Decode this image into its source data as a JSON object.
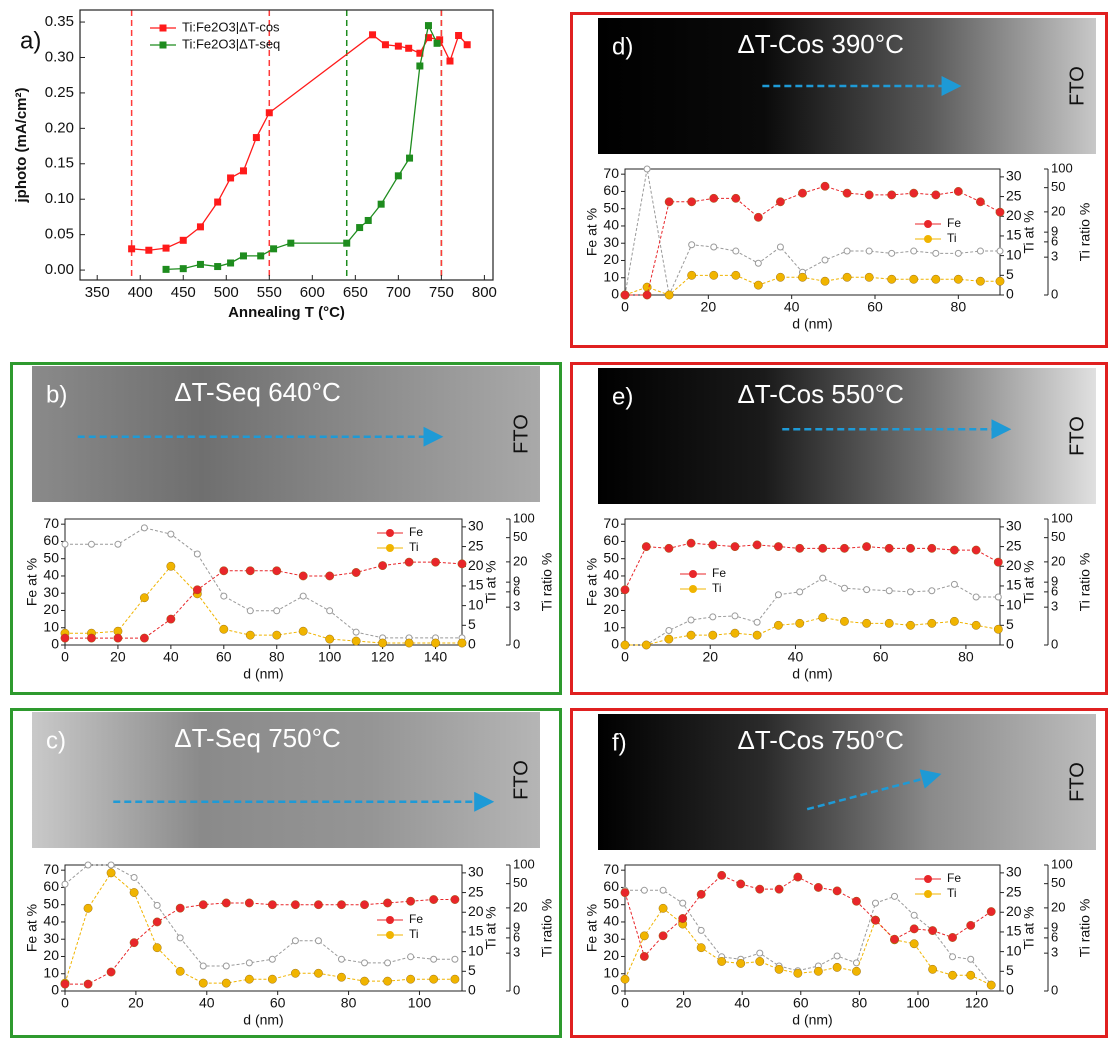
{
  "chart_data": [
    {
      "type": "line",
      "panel": "a)",
      "xlabel": "Annealing T (°C)",
      "ylabel": "jphoto (mA/cm²)",
      "xlim": [
        330,
        810
      ],
      "xticks": [
        350,
        400,
        450,
        500,
        550,
        600,
        650,
        700,
        750,
        800
      ],
      "ylim": [
        -0.014,
        0.367
      ],
      "yticks": [
        {
          "value": 0,
          "label": "0.00"
        },
        0.05,
        {
          "value": 0.1,
          "label": "0.10"
        },
        0.15,
        {
          "value": 0.2,
          "label": "0.20"
        },
        0.25,
        {
          "value": 0.3,
          "label": "0.30"
        },
        0.35
      ],
      "legend": "upper left",
      "vlines": [
        {
          "value": 390,
          "color": "#ff3b3b"
        },
        {
          "value": 550,
          "color": "#ff3b3b"
        },
        {
          "value": 640,
          "color": "#1e8c1e"
        },
        {
          "value": 750,
          "color": "#1e8c1e"
        },
        {
          "value": 750,
          "color": "#ff3b3b"
        }
      ],
      "series": [
        {
          "name": "Ti:Fe2O3|ΔT-cos",
          "color": "#ff1a1a",
          "x": [
            390,
            410,
            430,
            450,
            470,
            490,
            505,
            520,
            535,
            550,
            670,
            685,
            700,
            712,
            725,
            735,
            748,
            760,
            770,
            780
          ],
          "values": [
            0.03,
            0.028,
            0.031,
            0.042,
            0.061,
            0.096,
            0.13,
            0.14,
            0.187,
            0.222,
            0.332,
            0.318,
            0.316,
            0.313,
            0.306,
            0.328,
            0.325,
            0.295,
            0.331,
            0.318
          ]
        },
        {
          "name": "Ti:Fe2O3|ΔT-seq",
          "color": "#1e8c1e",
          "x": [
            430,
            450,
            470,
            490,
            505,
            520,
            540,
            555,
            575,
            640,
            655,
            665,
            680,
            700,
            713,
            725,
            735,
            745
          ],
          "values": [
            0.001,
            0.002,
            0.008,
            0.005,
            0.01,
            0.02,
            0.02,
            0.03,
            0.038,
            0.038,
            0.06,
            0.07,
            0.093,
            0.133,
            0.158,
            0.288,
            0.345,
            0.32
          ]
        }
      ]
    },
    {
      "type": "profile",
      "panel": "b)",
      "annotation": "ΔT-Seq 640°C",
      "side_label": "FTO",
      "frame_color": "#2e9a2e",
      "legend": "upper right",
      "xlabel": "d (nm)",
      "ylabel": "Fe at %",
      "y2label": "Ti at %",
      "y3label": "Ti ratio %",
      "xlim": [
        0,
        150
      ],
      "xticks": [
        0,
        20,
        40,
        60,
        80,
        100,
        120,
        140
      ],
      "ylim": [
        0,
        73
      ],
      "yticks": [
        0,
        10,
        20,
        30,
        40,
        50,
        60,
        70
      ],
      "y2lim": [
        0,
        32
      ],
      "y2ticks": [
        0,
        5,
        10,
        15,
        20,
        25,
        30
      ],
      "y3lim": [
        0,
        100
      ],
      "y3ticks": [
        0,
        3,
        6,
        9,
        20,
        50,
        100
      ],
      "y3scale": "log",
      "x": [
        0,
        10,
        20,
        30,
        40,
        50,
        60,
        70,
        80,
        90,
        100,
        110,
        120,
        130,
        140,
        150
      ],
      "series": [
        {
          "name": "Fe",
          "color": "#e8262a",
          "axis": "y",
          "values": [
            4,
            4,
            4,
            4,
            15,
            32,
            43,
            43,
            43,
            40,
            40,
            42,
            46,
            48,
            48,
            47
          ]
        },
        {
          "name": "Ti",
          "color": "#f0b400",
          "axis": "y2",
          "values": [
            3,
            3,
            3.5,
            12,
            20,
            13,
            4,
            2.5,
            2.5,
            3.5,
            1.5,
            1,
            0.5,
            0.5,
            0.5,
            0.5
          ]
        },
        {
          "color": "#9a9a9a",
          "axis": "y3",
          "values": [
            39,
            39,
            39,
            72,
            57,
            27,
            5,
            2.5,
            2.5,
            5,
            2.5,
            0.6,
            0.3,
            0.3,
            0.3,
            0.3
          ]
        }
      ]
    },
    {
      "type": "profile",
      "panel": "c)",
      "annotation": "ΔT-Seq 750°C",
      "side_label": "FTO",
      "frame_color": "#2e9a2e",
      "legend": "center right",
      "xlabel": "d (nm)",
      "ylabel": "Fe at %",
      "y2label": "Ti at %",
      "y3label": "Ti ratio %",
      "xlim": [
        0,
        112
      ],
      "xticks": [
        0,
        20,
        40,
        60,
        80,
        100
      ],
      "ylim": [
        0,
        73
      ],
      "yticks": [
        0,
        10,
        20,
        30,
        40,
        50,
        60,
        70
      ],
      "y2lim": [
        0,
        32
      ],
      "y2ticks": [
        0,
        5,
        10,
        15,
        20,
        25,
        30
      ],
      "y3lim": [
        0,
        100
      ],
      "y3ticks": [
        0,
        3,
        6,
        9,
        20,
        50,
        100
      ],
      "y3scale": "log",
      "x": [
        0,
        6.5,
        13,
        19.5,
        26,
        32.5,
        39,
        45.5,
        52,
        58.5,
        65,
        71.5,
        78,
        84.5,
        91,
        97.5,
        104,
        110
      ],
      "series": [
        {
          "name": "Fe",
          "color": "#e8262a",
          "axis": "y",
          "values": [
            4,
            4,
            11,
            28,
            40,
            48,
            50,
            51,
            51,
            50,
            50,
            50,
            50,
            50,
            51,
            52,
            53,
            53
          ]
        },
        {
          "name": "Ti",
          "color": "#f0b400",
          "axis": "y2",
          "values": [
            2,
            21,
            30,
            25,
            11,
            5,
            2,
            2,
            3,
            3,
            4.5,
            4.5,
            3.5,
            2.5,
            2.5,
            3,
            3,
            3
          ]
        },
        {
          "color": "#9a9a9a",
          "axis": "y3",
          "values": [
            49,
            100,
            100,
            63,
            22,
            6,
            1.5,
            1.5,
            1.8,
            2.2,
            5.3,
            5.3,
            2.2,
            1.8,
            1.8,
            2.5,
            2.2,
            2.2
          ]
        }
      ]
    },
    {
      "type": "profile",
      "panel": "d)",
      "annotation": "ΔT-Cos 390°C",
      "side_label": "FTO",
      "frame_color": "#e02020",
      "legend": "center right",
      "xlabel": "d (nm)",
      "ylabel": "Fe at %",
      "y2label": "Ti at %",
      "y3label": "Ti ratio %",
      "xlim": [
        0,
        90
      ],
      "xticks": [
        0,
        20,
        40,
        60,
        80
      ],
      "ylim": [
        0,
        73
      ],
      "yticks": [
        0,
        10,
        20,
        30,
        40,
        50,
        60,
        70
      ],
      "y2lim": [
        0,
        32
      ],
      "y2ticks": [
        0,
        5,
        10,
        15,
        20,
        25,
        30
      ],
      "y3lim": [
        0,
        100
      ],
      "y3ticks": [
        0,
        3,
        6,
        9,
        20,
        50,
        100
      ],
      "y3scale": "log",
      "x": [
        0,
        5.3,
        10.6,
        16,
        21.3,
        26.6,
        32,
        37.3,
        42.6,
        48,
        53.3,
        58.6,
        64,
        69.3,
        74.6,
        80,
        85.3,
        90
      ],
      "series": [
        {
          "name": "Fe",
          "color": "#e8262a",
          "axis": "y",
          "values": [
            0,
            0,
            54,
            54,
            56,
            56,
            45,
            54,
            59,
            63,
            59,
            58,
            58,
            59,
            58,
            60,
            54,
            48
          ]
        },
        {
          "name": "Ti",
          "color": "#f0b400",
          "axis": "y2",
          "values": [
            0,
            2,
            0,
            5,
            5,
            5,
            2.5,
            4.5,
            4.5,
            3.5,
            4.5,
            4.5,
            4,
            4,
            4,
            4,
            3.5,
            3.5
          ]
        },
        {
          "color": "#9a9a9a",
          "axis": "y3",
          "values": [
            0,
            100,
            0,
            5.3,
            4.8,
            4,
            2.2,
            4.8,
            1.3,
            2.6,
            4,
            4,
            3.6,
            4,
            3.6,
            3.6,
            4,
            4
          ]
        }
      ]
    },
    {
      "type": "profile",
      "panel": "e)",
      "annotation": "ΔT-Cos 550°C",
      "side_label": "FTO",
      "frame_color": "#e02020",
      "legend": "center left",
      "xlabel": "d (nm)",
      "ylabel": "Fe at %",
      "y2label": "Ti at %",
      "y3label": "Ti ratio %",
      "xlim": [
        0,
        88
      ],
      "xticks": [
        0,
        20,
        40,
        60,
        80
      ],
      "ylim": [
        0,
        73
      ],
      "yticks": [
        0,
        10,
        20,
        30,
        40,
        50,
        60,
        70
      ],
      "y2lim": [
        0,
        32
      ],
      "y2ticks": [
        0,
        5,
        10,
        15,
        20,
        25,
        30
      ],
      "y3lim": [
        0,
        100
      ],
      "y3ticks": [
        0,
        3,
        6,
        9,
        20,
        50,
        100
      ],
      "y3scale": "log",
      "x": [
        0,
        5,
        10.3,
        15.5,
        20.6,
        25.8,
        31,
        36,
        41,
        46.4,
        51.5,
        56.7,
        62,
        67,
        72,
        77.3,
        82.4,
        87.6
      ],
      "series": [
        {
          "name": "Fe",
          "color": "#e8262a",
          "axis": "y",
          "values": [
            32,
            57,
            56,
            59,
            58,
            57,
            58,
            57,
            56,
            56,
            56,
            57,
            56,
            56,
            56,
            55,
            55,
            48
          ]
        },
        {
          "name": "Ti",
          "color": "#f0b400",
          "axis": "y2",
          "values": [
            0,
            0,
            1.5,
            2.5,
            2.5,
            3,
            2.5,
            5,
            5.5,
            7,
            6,
            5.5,
            5.5,
            5,
            5.5,
            6,
            5,
            4
          ]
        },
        {
          "color": "#9a9a9a",
          "axis": "y3",
          "values": [
            0,
            0,
            0.7,
            1.5,
            1.8,
            1.9,
            1.3,
            5.3,
            6,
            10.6,
            7,
            6.6,
            6.3,
            6,
            6.3,
            8.2,
            4.8,
            4.8
          ]
        }
      ]
    },
    {
      "type": "profile",
      "panel": "f)",
      "annotation": "ΔT-Cos 750°C",
      "side_label": "FTO",
      "frame_color": "#e02020",
      "legend": "upper right",
      "xlabel": "d (nm)",
      "ylabel": "Fe at %",
      "y2label": "Ti at %",
      "y3label": "Ti ratio %",
      "xlim": [
        0,
        128
      ],
      "xticks": [
        0,
        20,
        40,
        60,
        80,
        100,
        120
      ],
      "ylim": [
        0,
        73
      ],
      "yticks": [
        0,
        10,
        20,
        30,
        40,
        50,
        60,
        70
      ],
      "y2lim": [
        0,
        32
      ],
      "y2ticks": [
        0,
        5,
        10,
        15,
        20,
        25,
        30
      ],
      "y3lim": [
        0,
        100
      ],
      "y3ticks": [
        0,
        3,
        6,
        9,
        20,
        50,
        100
      ],
      "y3scale": "log",
      "x": [
        0,
        6.6,
        13,
        19.7,
        26,
        33,
        39.5,
        46,
        52.6,
        59,
        66,
        72.4,
        79,
        85.5,
        92,
        98.7,
        105,
        111.8,
        118,
        125
      ],
      "series": [
        {
          "name": "Fe",
          "color": "#e8262a",
          "axis": "y",
          "values": [
            57,
            20,
            32,
            42,
            56,
            67,
            62,
            59,
            59,
            66,
            60,
            58,
            52,
            41,
            30,
            36,
            35,
            31,
            38,
            46
          ]
        },
        {
          "name": "Ti",
          "color": "#f0b400",
          "axis": "y2",
          "values": [
            3,
            14,
            21,
            17,
            11,
            7.5,
            7,
            7.5,
            5.5,
            4.5,
            5,
            6,
            5,
            18,
            13,
            12,
            5.5,
            4,
            4,
            1.5
          ]
        },
        {
          "color": "#9a9a9a",
          "axis": "y3",
          "values": [
            39,
            39,
            39,
            24,
            8.2,
            2.5,
            2.2,
            3,
            1.5,
            1.1,
            1.5,
            2.6,
            1.8,
            24,
            31,
            15,
            8.2,
            2.5,
            2.2,
            0.26
          ]
        }
      ]
    }
  ]
}
